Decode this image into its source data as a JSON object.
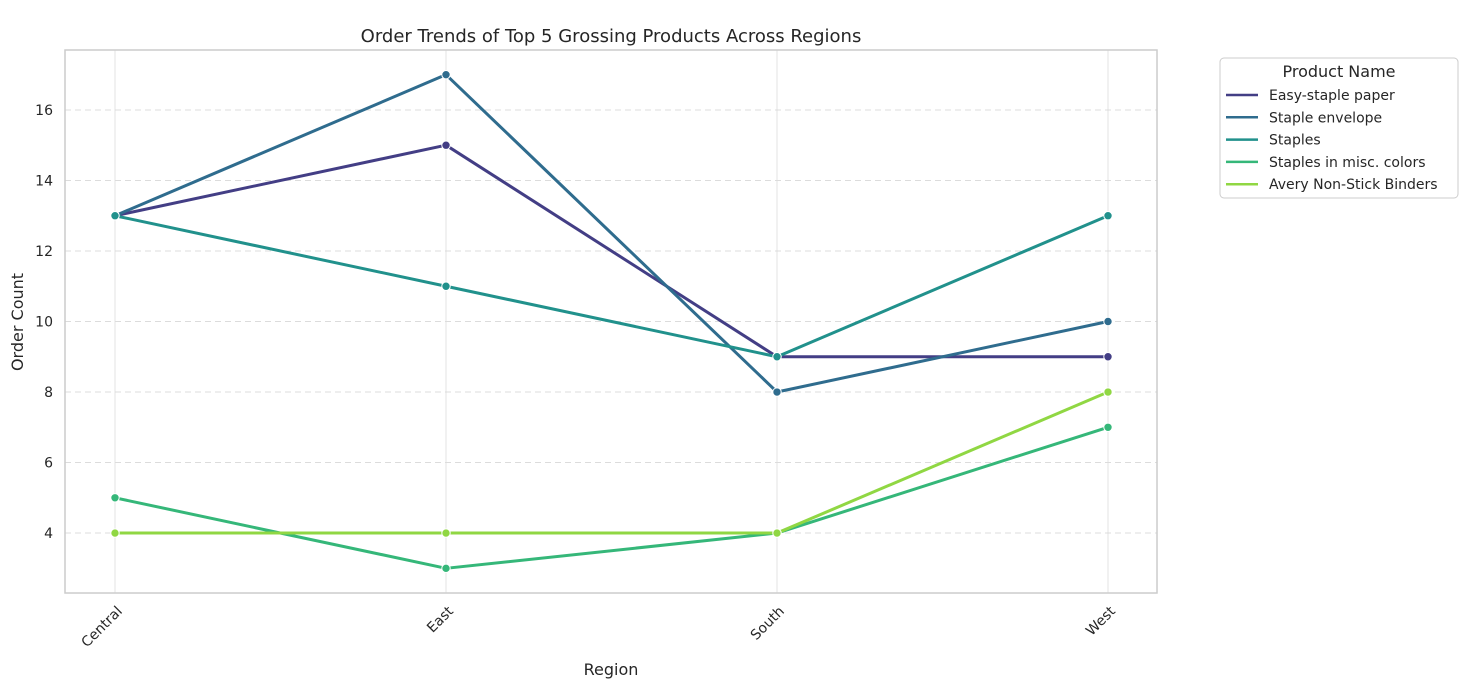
{
  "chart_data": {
    "type": "line",
    "title": "Order Trends of Top 5 Grossing Products Across Regions",
    "xlabel": "Region",
    "ylabel": "Order Count",
    "categories": [
      "Central",
      "East",
      "South",
      "West"
    ],
    "ylim": [
      2.3,
      17.7
    ],
    "yticks": [
      4,
      6,
      8,
      10,
      12,
      14,
      16
    ],
    "grid": true,
    "legend_title": "Product Name",
    "legend_position": "outside-top-right",
    "series": [
      {
        "name": "Easy-staple paper",
        "values": [
          13,
          15,
          9,
          9
        ],
        "color": "#433e85"
      },
      {
        "name": "Staple envelope",
        "values": [
          13,
          17,
          8,
          10
        ],
        "color": "#2f6c8e"
      },
      {
        "name": "Staples",
        "values": [
          13,
          11,
          9,
          13
        ],
        "color": "#21918c"
      },
      {
        "name": "Staples in misc. colors",
        "values": [
          5,
          3,
          4,
          7
        ],
        "color": "#35b779"
      },
      {
        "name": "Avery Non-Stick Binders",
        "values": [
          4,
          4,
          4,
          8
        ],
        "color": "#90d743"
      }
    ]
  }
}
